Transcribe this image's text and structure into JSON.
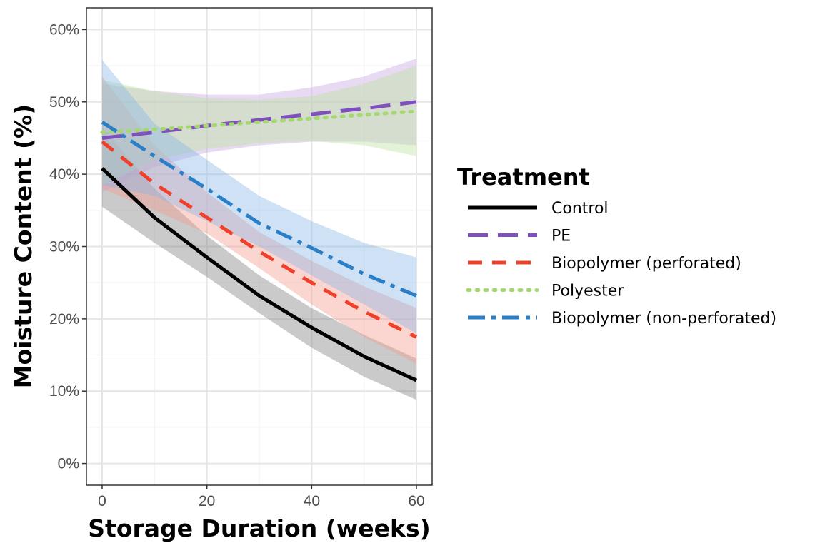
{
  "chart_data": {
    "type": "line",
    "xlabel": "Storage Duration (weeks)",
    "ylabel": "Moisture Content (%)",
    "xlim": [
      -3,
      63
    ],
    "ylim": [
      -3,
      63
    ],
    "x_ticks": [
      0,
      20,
      40,
      60
    ],
    "x_tick_labels": [
      "0",
      "20",
      "40",
      "60"
    ],
    "y_ticks": [
      0,
      10,
      20,
      30,
      40,
      50,
      60
    ],
    "y_tick_labels": [
      "0%",
      "10%",
      "20%",
      "30%",
      "40%",
      "50%",
      "60%"
    ],
    "grid": true,
    "legend": {
      "title": "Treatment",
      "position": "right"
    },
    "x": [
      0,
      10,
      20,
      30,
      40,
      50,
      60
    ],
    "series": [
      {
        "name": "Control",
        "color": "#000000",
        "line_style": "solid",
        "band_color": "#808080",
        "values": [
          40.8,
          34.0,
          28.5,
          23.2,
          18.8,
          14.8,
          11.5
        ],
        "lower": [
          35.5,
          30.5,
          25.8,
          20.8,
          16.0,
          12.0,
          8.8
        ],
        "upper": [
          46.5,
          38.0,
          31.5,
          26.0,
          21.5,
          17.8,
          14.5
        ]
      },
      {
        "name": "PE",
        "color": "#7f4fbf",
        "line_style": "longdash",
        "band_color": "#c8a8e0",
        "values": [
          45.0,
          45.8,
          46.7,
          47.5,
          48.3,
          49.1,
          50.0
        ],
        "lower": [
          37.5,
          41.0,
          43.0,
          44.0,
          44.5,
          44.5,
          44.0
        ],
        "upper": [
          52.5,
          51.5,
          51.0,
          51.0,
          52.0,
          53.5,
          56.0
        ]
      },
      {
        "name": "Biopolymer (perforated)",
        "color": "#f0402a",
        "line_style": "dashed",
        "band_color": "#f69a90",
        "values": [
          44.5,
          38.7,
          34.0,
          29.3,
          25.0,
          21.0,
          17.5
        ],
        "lower": [
          38.0,
          35.0,
          31.8,
          27.0,
          22.0,
          17.5,
          13.8
        ],
        "upper": [
          53.5,
          44.0,
          37.5,
          32.0,
          28.0,
          24.5,
          21.5
        ]
      },
      {
        "name": "Polyester",
        "color": "#a5d86f",
        "line_style": "dotted",
        "band_color": "#b9e3a0",
        "values": [
          45.8,
          46.2,
          46.7,
          47.2,
          47.7,
          48.2,
          48.7
        ],
        "lower": [
          38.5,
          42.0,
          43.5,
          44.3,
          44.6,
          44.0,
          42.5
        ],
        "upper": [
          53.0,
          51.5,
          50.5,
          50.3,
          50.8,
          52.5,
          55.0
        ]
      },
      {
        "name": "Biopolymer (non-perforated)",
        "color": "#2a7fc8",
        "line_style": "dashdot",
        "band_color": "#8ab8e6",
        "values": [
          47.2,
          42.5,
          38.0,
          33.2,
          29.8,
          26.2,
          23.2
        ],
        "lower": [
          38.5,
          37.0,
          33.5,
          30.0,
          26.0,
          22.0,
          18.0
        ],
        "upper": [
          55.8,
          47.0,
          42.0,
          37.0,
          33.5,
          30.5,
          28.5
        ]
      }
    ]
  }
}
